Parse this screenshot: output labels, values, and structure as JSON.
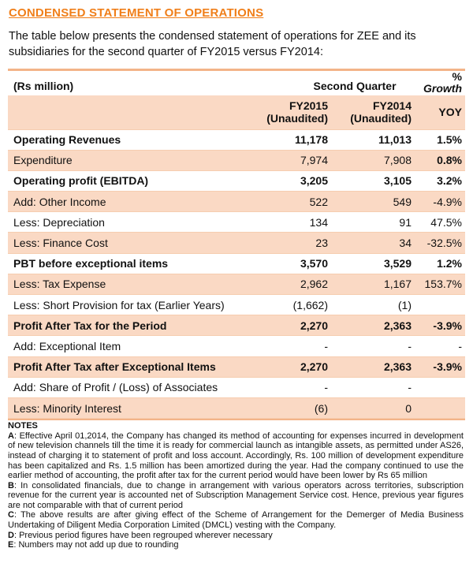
{
  "title": "CONDENSED STATEMENT OF OPERATIONS",
  "intro": "The table below presents the condensed statement of operations for ZEE and its subsidiaries for the second quarter of FY2015 versus FY2014:",
  "table": {
    "header": {
      "unit_label": "(Rs million)",
      "period_label": "Second Quarter",
      "growth_pct": "%",
      "growth_label": "Growth",
      "col1_line1": "FY2015",
      "col1_line2": "(Unaudited)",
      "col2_line1": "FY2014",
      "col2_line2": "(Unaudited)",
      "growth_sub": "YOY"
    },
    "rows": [
      {
        "label": "Operating Revenues",
        "fy2015": "11,178",
        "fy2014": "11,013",
        "growth": "1.5%"
      },
      {
        "label": "Expenditure",
        "fy2015": "7,974",
        "fy2014": "7,908",
        "growth": "0.8%"
      },
      {
        "label": "Operating profit (EBITDA)",
        "fy2015": "3,205",
        "fy2014": "3,105",
        "growth": "3.2%"
      },
      {
        "label": "Add: Other Income",
        "fy2015": "522",
        "fy2014": "549",
        "growth": "-4.9%"
      },
      {
        "label": "Less: Depreciation",
        "fy2015": "134",
        "fy2014": "91",
        "growth": "47.5%"
      },
      {
        "label": "Less: Finance Cost",
        "fy2015": "23",
        "fy2014": "34",
        "growth": "-32.5%"
      },
      {
        "label": "PBT before exceptional items",
        "fy2015": "3,570",
        "fy2014": "3,529",
        "growth": "1.2%"
      },
      {
        "label": "Less: Tax Expense",
        "fy2015": "2,962",
        "fy2014": "1,167",
        "growth": "153.7%"
      },
      {
        "label": "Less: Short Provision for tax (Earlier Years)",
        "fy2015": "(1,662)",
        "fy2014": "(1)",
        "growth": ""
      },
      {
        "label": "Profit After Tax for the Period",
        "fy2015": "2,270",
        "fy2014": "2,363",
        "growth": "-3.9%"
      },
      {
        "label": "Add: Exceptional Item",
        "fy2015": "-",
        "fy2014": "-",
        "growth": "-"
      },
      {
        "label": "Profit After Tax after Exceptional Items",
        "fy2015": "2,270",
        "fy2014": "2,363",
        "growth": "-3.9%"
      },
      {
        "label": "Add: Share of Profit / (Loss) of Associates",
        "fy2015": "-",
        "fy2014": "-",
        "growth": ""
      },
      {
        "label": "Less: Minority Interest",
        "fy2015": "(6)",
        "fy2014": "0",
        "growth": ""
      }
    ]
  },
  "notes": {
    "heading": "NOTES",
    "items": [
      {
        "key": "A",
        "text": ": Effective April 01,2014, the Company has changed its method of accounting for expenses incurred in development of new television channels till the time it is ready for commercial launch as intangible assets, as permitted under AS26, instead of charging it to statement of profit and loss account. Accordingly, Rs. 100 million of development expenditure has been capitalized and Rs. 1.5 million has been amortized during the year. Had the company continued to use the earlier method of accounting, the profit after tax for the current period would have been lower by Rs 65 million"
      },
      {
        "key": "B",
        "text": ": In consolidated financials, due to change in arrangement with various operators across territories, subscription revenue for the current year is accounted net of Subscription Management Service cost. Hence, previous year figures are not comparable with that of current period"
      },
      {
        "key": "C",
        "text": ": The above results are after giving effect of the Scheme of Arrangement for the Demerger of Media Business Undertaking of Diligent Media Corporation Limited (DMCL) vesting with the Company."
      },
      {
        "key": "D",
        "text": ": Previous period figures have been regrouped wherever necessary"
      },
      {
        "key": "E",
        "text": ": Numbers may not add up due to rounding"
      }
    ]
  }
}
